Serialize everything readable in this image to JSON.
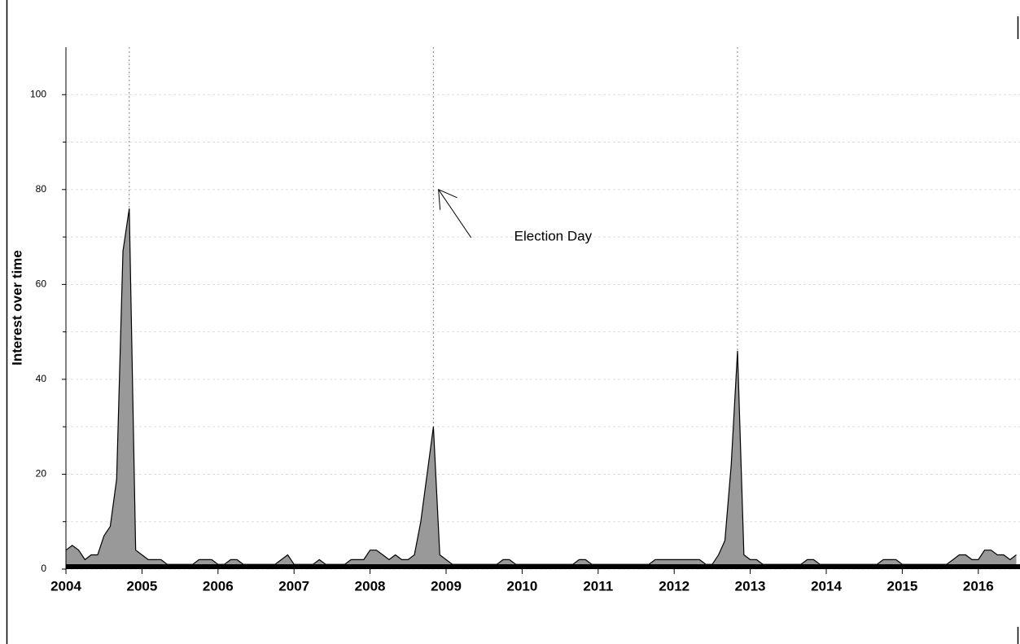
{
  "chart_data": {
    "type": "area",
    "ylabel": "Interest over time",
    "xlim": [
      2004,
      2016.5
    ],
    "xticks": [
      2004,
      2005,
      2006,
      2007,
      2008,
      2009,
      2010,
      2011,
      2012,
      2013,
      2014,
      2015,
      2016
    ],
    "ylim": [
      0,
      110
    ],
    "yticks": [
      0,
      20,
      40,
      60,
      80,
      100
    ],
    "yminorticks": [
      10,
      30,
      50,
      70,
      90
    ],
    "grid": true,
    "color": "#999999",
    "vlines": [
      2004.833,
      2008.833,
      2012.833
    ],
    "annotation": {
      "text": "Election Day",
      "xy": [
        2008.9,
        80
      ]
    },
    "x": [
      2004,
      2004.083,
      2004.167,
      2004.25,
      2004.333,
      2004.417,
      2004.5,
      2004.583,
      2004.667,
      2004.75,
      2004.833,
      2004.917,
      2005,
      2005.083,
      2005.167,
      2005.25,
      2005.333,
      2005.417,
      2005.5,
      2005.583,
      2005.667,
      2005.75,
      2005.833,
      2005.917,
      2006,
      2006.083,
      2006.167,
      2006.25,
      2006.333,
      2006.417,
      2006.5,
      2006.583,
      2006.667,
      2006.75,
      2006.833,
      2006.917,
      2007,
      2007.083,
      2007.167,
      2007.25,
      2007.333,
      2007.417,
      2007.5,
      2007.583,
      2007.667,
      2007.75,
      2007.833,
      2007.917,
      2008,
      2008.083,
      2008.167,
      2008.25,
      2008.333,
      2008.417,
      2008.5,
      2008.583,
      2008.667,
      2008.75,
      2008.833,
      2008.917,
      2009,
      2009.083,
      2009.167,
      2009.25,
      2009.333,
      2009.417,
      2009.5,
      2009.583,
      2009.667,
      2009.75,
      2009.833,
      2009.917,
      2010,
      2010.083,
      2010.167,
      2010.25,
      2010.333,
      2010.417,
      2010.5,
      2010.583,
      2010.667,
      2010.75,
      2010.833,
      2010.917,
      2011,
      2011.083,
      2011.167,
      2011.25,
      2011.333,
      2011.417,
      2011.5,
      2011.583,
      2011.667,
      2011.75,
      2011.833,
      2011.917,
      2012,
      2012.083,
      2012.167,
      2012.25,
      2012.333,
      2012.417,
      2012.5,
      2012.583,
      2012.667,
      2012.75,
      2012.833,
      2012.917,
      2013,
      2013.083,
      2013.167,
      2013.25,
      2013.333,
      2013.417,
      2013.5,
      2013.583,
      2013.667,
      2013.75,
      2013.833,
      2013.917,
      2014,
      2014.083,
      2014.167,
      2014.25,
      2014.333,
      2014.417,
      2014.5,
      2014.583,
      2014.667,
      2014.75,
      2014.833,
      2014.917,
      2015,
      2015.083,
      2015.167,
      2015.25,
      2015.333,
      2015.417,
      2015.5,
      2015.583,
      2015.667,
      2015.75,
      2015.833,
      2015.917,
      2016,
      2016.083,
      2016.167,
      2016.25,
      2016.333,
      2016.417,
      2016.5
    ],
    "values": [
      4,
      5,
      4,
      2,
      3,
      3,
      7,
      9,
      19,
      67,
      76,
      4,
      3,
      2,
      2,
      2,
      1,
      1,
      1,
      1,
      1,
      2,
      2,
      2,
      1,
      1,
      2,
      2,
      1,
      1,
      1,
      1,
      1,
      1,
      2,
      3,
      1,
      1,
      1,
      1,
      2,
      1,
      1,
      1,
      1,
      2,
      2,
      2,
      4,
      4,
      3,
      2,
      3,
      2,
      2,
      3,
      10,
      20,
      30,
      3,
      2,
      1,
      1,
      1,
      1,
      1,
      1,
      1,
      1,
      2,
      2,
      1,
      1,
      1,
      1,
      1,
      1,
      1,
      1,
      1,
      1,
      2,
      2,
      1,
      1,
      1,
      1,
      1,
      1,
      1,
      1,
      1,
      1,
      2,
      2,
      2,
      2,
      2,
      2,
      2,
      2,
      1,
      1,
      3,
      6,
      22,
      46,
      3,
      2,
      2,
      1,
      1,
      1,
      1,
      1,
      1,
      1,
      2,
      2,
      1,
      1,
      1,
      1,
      1,
      1,
      1,
      1,
      1,
      1,
      2,
      2,
      2,
      1,
      1,
      1,
      1,
      1,
      1,
      1,
      1,
      2,
      3,
      3,
      2,
      2,
      4,
      4,
      3,
      3,
      2,
      3
    ]
  }
}
